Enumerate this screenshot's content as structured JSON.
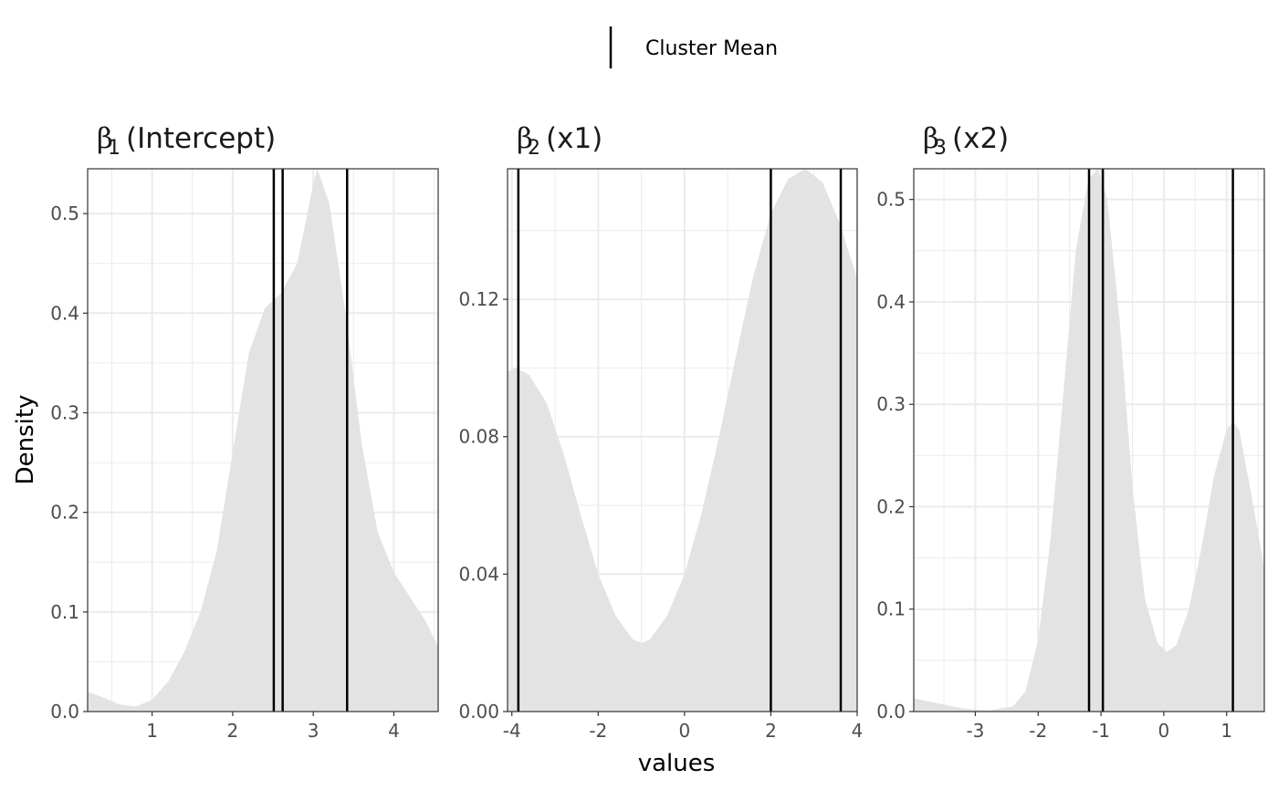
{
  "legend": {
    "label": "Cluster Mean"
  },
  "axes": {
    "xlabel": "values",
    "ylabel": "Density"
  },
  "colors": {
    "density_fill": "#e3e3e3",
    "mean_line": "#000000",
    "grid": "#ebebeb",
    "panel_border": "#333333"
  },
  "chart_data": [
    {
      "type": "area",
      "facet_symbol": "β",
      "facet_index": "1",
      "facet_label": "(Intercept)",
      "xlim": [
        0.2,
        4.55
      ],
      "ylim": [
        0,
        0.545
      ],
      "x_ticks": [
        1,
        2,
        3,
        4
      ],
      "x_tick_labels": [
        "1",
        "2",
        "3",
        "4"
      ],
      "y_ticks": [
        0,
        0.1,
        0.2,
        0.3,
        0.4,
        0.5
      ],
      "y_tick_labels": [
        "0.0",
        "0.1",
        "0.2",
        "0.3",
        "0.4",
        "0.5"
      ],
      "x": [
        0.2,
        0.4,
        0.6,
        0.8,
        1.0,
        1.2,
        1.4,
        1.6,
        1.8,
        2.0,
        2.2,
        2.4,
        2.6,
        2.8,
        3.0,
        3.05,
        3.2,
        3.4,
        3.6,
        3.8,
        4.0,
        4.2,
        4.4,
        4.55
      ],
      "values": [
        0.02,
        0.014,
        0.007,
        0.005,
        0.012,
        0.03,
        0.06,
        0.1,
        0.16,
        0.26,
        0.36,
        0.405,
        0.42,
        0.45,
        0.53,
        0.545,
        0.51,
        0.4,
        0.27,
        0.18,
        0.14,
        0.115,
        0.09,
        0.065
      ],
      "cluster_means": [
        2.51,
        2.62,
        3.42
      ]
    },
    {
      "type": "area",
      "facet_symbol": "β",
      "facet_index": "2",
      "facet_label": "(x1)",
      "xlim": [
        -4.1,
        4.0
      ],
      "ylim": [
        0,
        0.158
      ],
      "x_ticks": [
        -4,
        -2,
        0,
        2,
        4
      ],
      "x_tick_labels": [
        "-4",
        "-2",
        "0",
        "2",
        "4"
      ],
      "y_ticks": [
        0,
        0.04,
        0.08,
        0.12
      ],
      "y_tick_labels": [
        "0.00",
        "0.04",
        "0.08",
        "0.12"
      ],
      "x": [
        -4.1,
        -3.9,
        -3.6,
        -3.2,
        -2.8,
        -2.4,
        -2.0,
        -1.6,
        -1.2,
        -1.0,
        -0.8,
        -0.4,
        0.0,
        0.4,
        0.8,
        1.2,
        1.6,
        2.0,
        2.4,
        2.8,
        3.2,
        3.6,
        4.0
      ],
      "values": [
        0.099,
        0.1,
        0.098,
        0.09,
        0.075,
        0.057,
        0.04,
        0.028,
        0.021,
        0.02,
        0.021,
        0.028,
        0.04,
        0.058,
        0.08,
        0.104,
        0.127,
        0.145,
        0.155,
        0.158,
        0.154,
        0.142,
        0.126
      ],
      "cluster_means": [
        -3.85,
        2.0,
        3.62
      ]
    },
    {
      "type": "area",
      "facet_symbol": "β",
      "facet_index": "3",
      "facet_label": "(x2)",
      "xlim": [
        -3.98,
        1.6
      ],
      "ylim": [
        0,
        0.53
      ],
      "x_ticks": [
        -3,
        -2,
        -1,
        0,
        1
      ],
      "x_tick_labels": [
        "-3",
        "-2",
        "-1",
        "0",
        "1"
      ],
      "y_ticks": [
        0,
        0.1,
        0.2,
        0.3,
        0.4,
        0.5
      ],
      "y_tick_labels": [
        "0.0",
        "0.1",
        "0.2",
        "0.3",
        "0.4",
        "0.5"
      ],
      "x": [
        -3.98,
        -3.6,
        -3.2,
        -2.8,
        -2.4,
        -2.2,
        -2.0,
        -1.8,
        -1.6,
        -1.4,
        -1.2,
        -1.05,
        -0.9,
        -0.7,
        -0.5,
        -0.3,
        -0.1,
        0.05,
        0.2,
        0.4,
        0.6,
        0.8,
        1.0,
        1.1,
        1.2,
        1.4,
        1.6
      ],
      "values": [
        0.013,
        0.008,
        0.003,
        0.001,
        0.005,
        0.02,
        0.07,
        0.17,
        0.31,
        0.45,
        0.52,
        0.53,
        0.5,
        0.38,
        0.22,
        0.11,
        0.067,
        0.058,
        0.065,
        0.1,
        0.16,
        0.23,
        0.275,
        0.283,
        0.275,
        0.21,
        0.14
      ],
      "cluster_means": [
        -1.19,
        -0.97,
        1.1
      ]
    }
  ]
}
